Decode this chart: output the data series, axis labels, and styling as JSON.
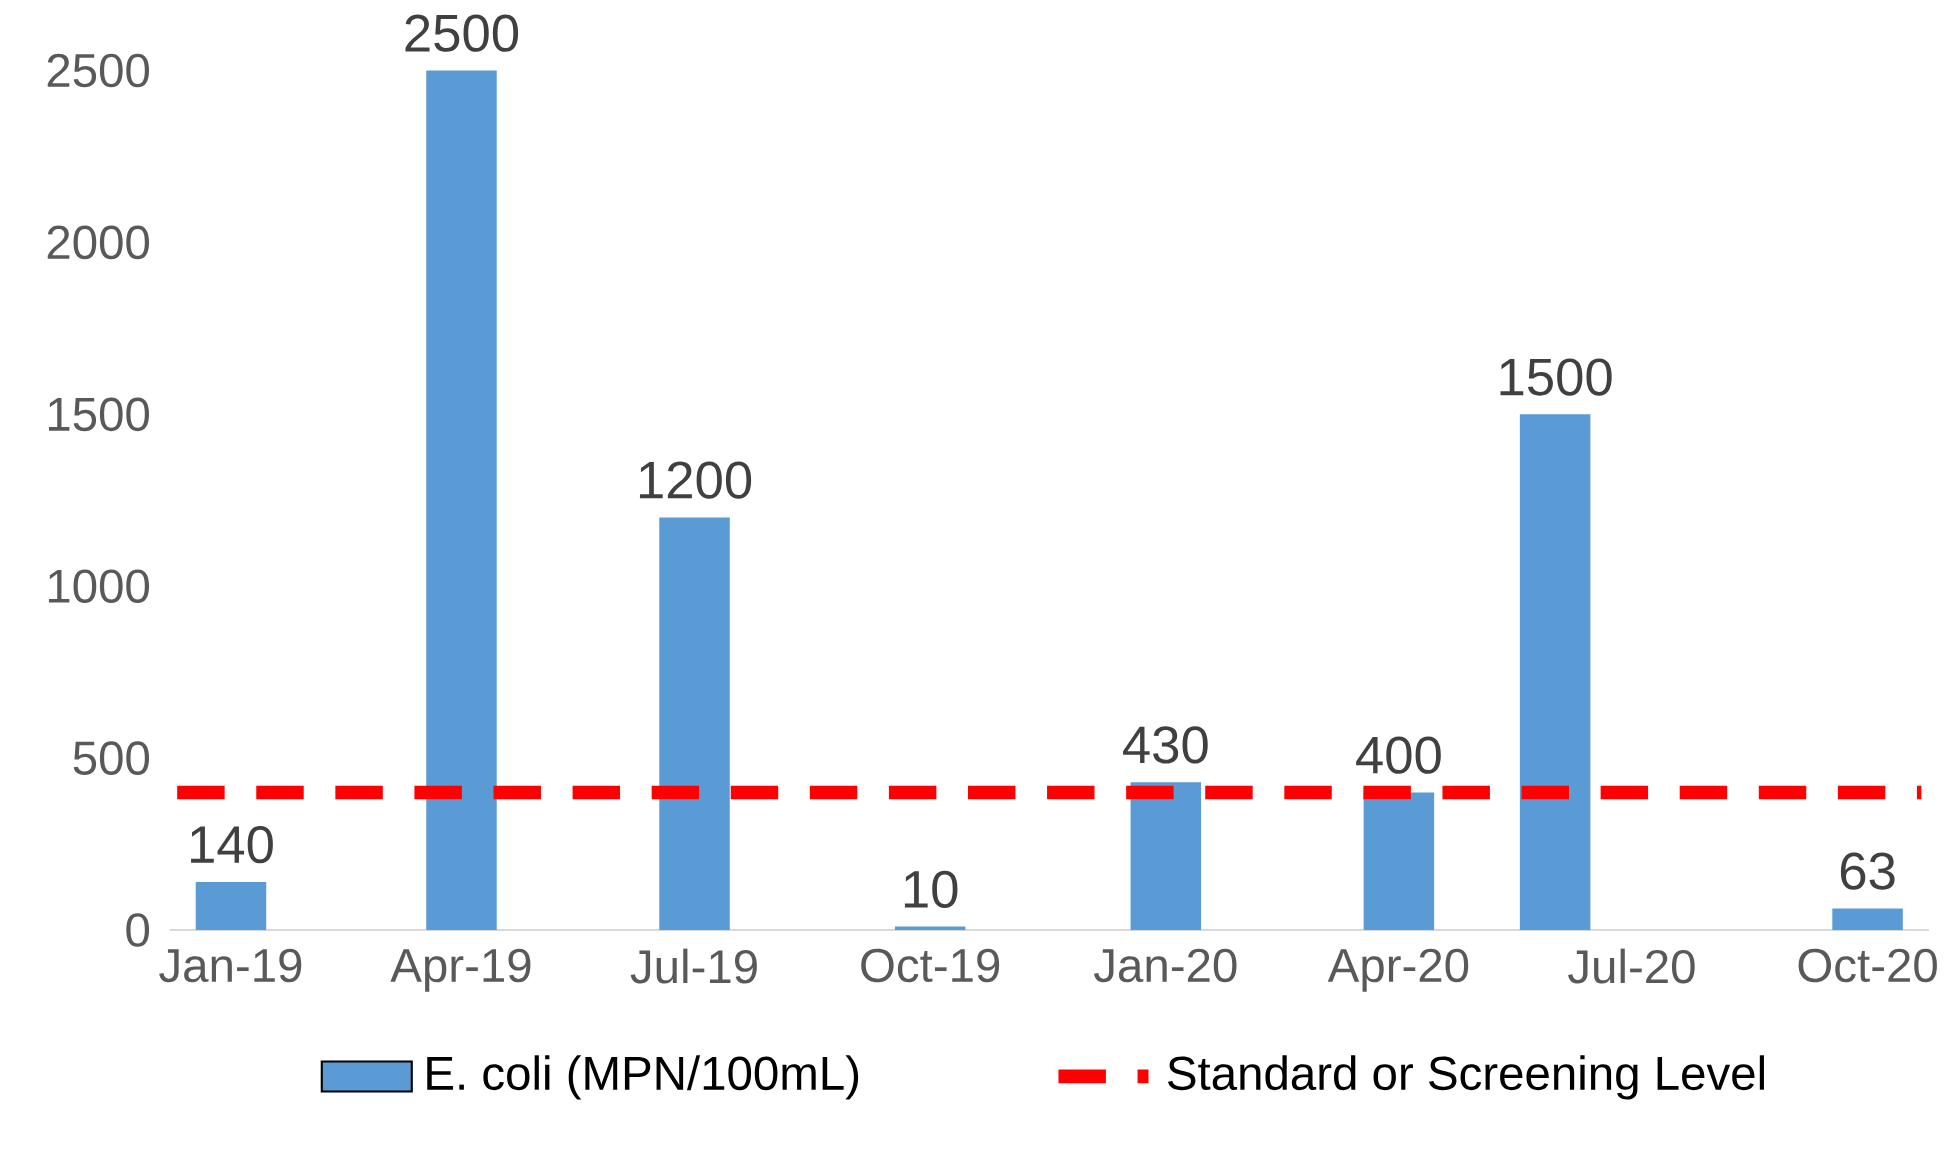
{
  "chart_data": {
    "type": "bar",
    "x": [
      "2019-01",
      "2019-04",
      "2019-07",
      "2019-10",
      "2020-01",
      "2020-04",
      "2020-06",
      "2020-10"
    ],
    "series": [
      {
        "name": "E. coli (MPN/100mL)",
        "color": "#5b9bd5",
        "values": [
          140,
          2500,
          1200,
          10,
          430,
          400,
          1500,
          63
        ]
      }
    ],
    "data_labels": true,
    "xlim": [
      "2018-12-08",
      "2020-10-25"
    ],
    "xticks": [
      {
        "value": "2019-01",
        "label": "Jan-19"
      },
      {
        "value": "2019-04",
        "label": "Apr-19"
      },
      {
        "value": "2019-07",
        "label": "Jul-19"
      },
      {
        "value": "2019-10",
        "label": "Oct-19"
      },
      {
        "value": "2020-01",
        "label": "Jan-20"
      },
      {
        "value": "2020-04",
        "label": "Apr-20"
      },
      {
        "value": "2020-07",
        "label": "Jul-20"
      },
      {
        "value": "2020-10",
        "label": "Oct-20"
      }
    ],
    "ylim": [
      0,
      2500
    ],
    "yticks": [
      0,
      500,
      1000,
      1500,
      2000,
      2500
    ],
    "ref_lines": [
      {
        "axis": "y",
        "value": 400,
        "label": "Standard or Screening Level",
        "color": "#ff0000",
        "line_style": "dashed"
      }
    ],
    "legend": "bottom",
    "grid": false
  }
}
